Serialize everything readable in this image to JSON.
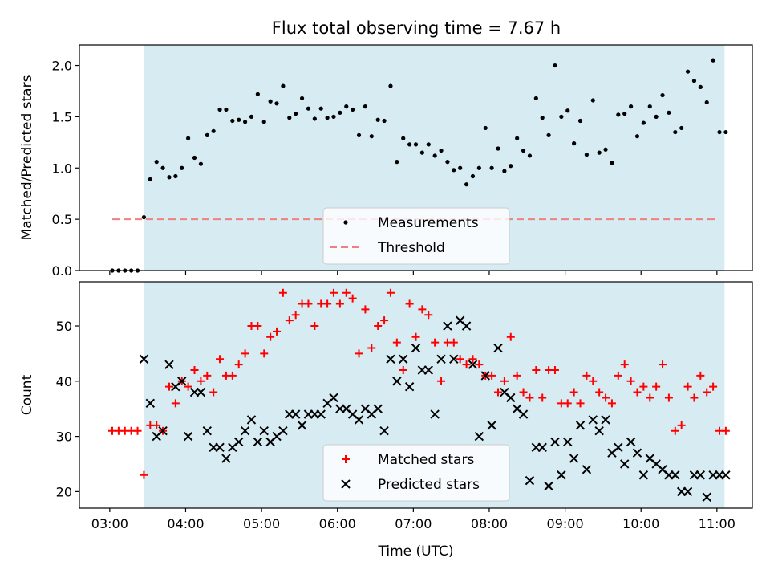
{
  "title": "Flux total observing time = 7.67 h",
  "chart_data": [
    {
      "type": "scatter",
      "ylabel": "Matched/Predicted stars",
      "x_range": [
        "02:36",
        "11:28"
      ],
      "ylim": [
        0,
        2.2
      ],
      "yticks": [
        "0.0",
        "0.5",
        "1.0",
        "1.5",
        "2.0"
      ],
      "shaded_span": {
        "x": [
          "03:27",
          "11:06"
        ],
        "color": "#add8e6"
      },
      "legend_position": "lower-center",
      "series": [
        {
          "name": "Measurements",
          "marker": "dot",
          "color": "#000000",
          "x": [
            "03:02",
            "03:07",
            "03:12",
            "03:17",
            "03:22",
            "03:27",
            "03:32",
            "03:37",
            "03:42",
            "03:47",
            "03:52",
            "03:57",
            "04:02",
            "04:07",
            "04:12",
            "04:17",
            "04:22",
            "04:27",
            "04:32",
            "04:37",
            "04:42",
            "04:47",
            "04:52",
            "04:57",
            "05:02",
            "05:07",
            "05:12",
            "05:17",
            "05:22",
            "05:27",
            "05:32",
            "05:37",
            "05:42",
            "05:47",
            "05:52",
            "05:57",
            "06:02",
            "06:07",
            "06:12",
            "06:17",
            "06:22",
            "06:27",
            "06:32",
            "06:37",
            "06:42",
            "06:47",
            "06:52",
            "06:57",
            "07:02",
            "07:07",
            "07:12",
            "07:17",
            "07:22",
            "07:27",
            "07:32",
            "07:37",
            "07:42",
            "07:47",
            "07:52",
            "07:57",
            "08:02",
            "08:07",
            "08:12",
            "08:17",
            "08:22",
            "08:27",
            "08:32",
            "08:37",
            "08:42",
            "08:47",
            "08:52",
            "08:57",
            "09:02",
            "09:07",
            "09:12",
            "09:17",
            "09:22",
            "09:27",
            "09:32",
            "09:37",
            "09:42",
            "09:47",
            "09:52",
            "09:57",
            "10:02",
            "10:07",
            "10:12",
            "10:17",
            "10:22",
            "10:27",
            "10:32",
            "10:37",
            "10:42",
            "10:47",
            "10:52",
            "10:57",
            "11:02",
            "11:07"
          ],
          "y": [
            0.0,
            0.0,
            0.0,
            0.0,
            0.0,
            0.52,
            0.89,
            1.06,
            1.0,
            0.91,
            0.92,
            1.0,
            1.29,
            1.1,
            1.04,
            1.32,
            1.36,
            1.57,
            1.57,
            1.46,
            1.47,
            1.45,
            1.5,
            1.72,
            1.45,
            1.65,
            1.63,
            1.8,
            1.49,
            1.53,
            1.68,
            1.58,
            1.48,
            1.58,
            1.49,
            1.5,
            1.54,
            1.6,
            1.57,
            1.32,
            1.6,
            1.31,
            1.47,
            1.46,
            1.8,
            1.06,
            1.29,
            1.23,
            1.23,
            1.15,
            1.23,
            1.12,
            1.17,
            1.06,
            0.98,
            1.0,
            0.84,
            0.92,
            1.0,
            1.39,
            1.0,
            1.19,
            0.97,
            1.02,
            1.29,
            1.17,
            1.12,
            1.68,
            1.49,
            1.32,
            2.0,
            1.5,
            1.56,
            1.24,
            1.46,
            1.13,
            1.66,
            1.15,
            1.18,
            1.05,
            1.52,
            1.53,
            1.6,
            1.31,
            1.44,
            1.6,
            1.5,
            1.71,
            1.54,
            1.35,
            1.39,
            1.94,
            1.85,
            1.79,
            1.64,
            2.05,
            1.35,
            1.35
          ]
        },
        {
          "name": "Threshold",
          "marker": "dashed-line",
          "color": "#f08080",
          "x": [
            "03:02",
            "11:02"
          ],
          "y": [
            0.5,
            0.5
          ]
        }
      ]
    },
    {
      "type": "scatter",
      "ylabel": "Count",
      "xlabel": "Time (UTC)",
      "x_range": [
        "02:36",
        "11:28"
      ],
      "ylim": [
        17,
        58
      ],
      "yticks": [
        "20",
        "30",
        "40",
        "50"
      ],
      "xticks": [
        "03:00",
        "04:00",
        "05:00",
        "06:00",
        "07:00",
        "08:00",
        "09:00",
        "10:00",
        "11:00"
      ],
      "shaded_span": {
        "x": [
          "03:27",
          "11:06"
        ],
        "color": "#add8e6"
      },
      "legend_position": "lower-center",
      "series": [
        {
          "name": "Matched stars",
          "marker": "plus",
          "color": "#ff0000",
          "x": [
            "03:02",
            "03:07",
            "03:12",
            "03:17",
            "03:22",
            "03:27",
            "03:32",
            "03:37",
            "03:42",
            "03:47",
            "03:52",
            "03:57",
            "04:02",
            "04:07",
            "04:12",
            "04:17",
            "04:22",
            "04:27",
            "04:32",
            "04:37",
            "04:42",
            "04:47",
            "04:52",
            "04:57",
            "05:02",
            "05:07",
            "05:12",
            "05:17",
            "05:22",
            "05:27",
            "05:32",
            "05:37",
            "05:42",
            "05:47",
            "05:52",
            "05:57",
            "06:02",
            "06:07",
            "06:12",
            "06:17",
            "06:22",
            "06:27",
            "06:32",
            "06:37",
            "06:42",
            "06:47",
            "06:52",
            "06:57",
            "07:02",
            "07:07",
            "07:12",
            "07:17",
            "07:22",
            "07:27",
            "07:32",
            "07:37",
            "07:42",
            "07:47",
            "07:52",
            "07:57",
            "08:02",
            "08:07",
            "08:12",
            "08:17",
            "08:22",
            "08:27",
            "08:32",
            "08:37",
            "08:42",
            "08:47",
            "08:52",
            "08:57",
            "09:02",
            "09:07",
            "09:12",
            "09:17",
            "09:22",
            "09:27",
            "09:32",
            "09:37",
            "09:42",
            "09:47",
            "09:52",
            "09:57",
            "10:02",
            "10:07",
            "10:12",
            "10:17",
            "10:22",
            "10:27",
            "10:32",
            "10:37",
            "10:42",
            "10:47",
            "10:52",
            "10:57",
            "11:02",
            "11:07"
          ],
          "y": [
            31,
            31,
            31,
            31,
            31,
            23,
            32,
            32,
            31,
            39,
            36,
            40,
            39,
            42,
            40,
            41,
            38,
            44,
            41,
            41,
            43,
            45,
            50,
            50,
            45,
            48,
            49,
            56,
            51,
            52,
            54,
            54,
            50,
            54,
            54,
            56,
            54,
            56,
            55,
            45,
            53,
            46,
            50,
            51,
            56,
            47,
            42,
            54,
            48,
            53,
            52,
            47,
            40,
            47,
            47,
            44,
            43,
            44,
            43,
            41,
            41,
            38,
            40,
            48,
            41,
            38,
            37,
            42,
            37,
            42,
            42,
            36,
            36,
            38,
            36,
            41,
            40,
            38,
            37,
            36,
            41,
            43,
            40,
            38,
            39,
            37,
            39,
            43,
            37,
            31,
            32,
            39,
            37,
            41,
            38,
            39,
            31,
            31
          ]
        },
        {
          "name": "Predicted stars",
          "marker": "x",
          "color": "#000000",
          "x": [
            "03:27",
            "03:32",
            "03:37",
            "03:42",
            "03:47",
            "03:52",
            "03:57",
            "04:02",
            "04:07",
            "04:12",
            "04:17",
            "04:22",
            "04:27",
            "04:32",
            "04:37",
            "04:42",
            "04:47",
            "04:52",
            "04:57",
            "05:02",
            "05:07",
            "05:12",
            "05:17",
            "05:22",
            "05:27",
            "05:32",
            "05:37",
            "05:42",
            "05:47",
            "05:52",
            "05:57",
            "06:02",
            "06:07",
            "06:12",
            "06:17",
            "06:22",
            "06:27",
            "06:32",
            "06:37",
            "06:42",
            "06:47",
            "06:52",
            "06:57",
            "07:02",
            "07:07",
            "07:12",
            "07:17",
            "07:22",
            "07:27",
            "07:32",
            "07:37",
            "07:42",
            "07:47",
            "07:52",
            "07:57",
            "08:02",
            "08:07",
            "08:12",
            "08:17",
            "08:22",
            "08:27",
            "08:32",
            "08:37",
            "08:42",
            "08:47",
            "08:52",
            "08:57",
            "09:02",
            "09:07",
            "09:12",
            "09:17",
            "09:22",
            "09:27",
            "09:32",
            "09:37",
            "09:42",
            "09:47",
            "09:52",
            "09:57",
            "10:02",
            "10:07",
            "10:12",
            "10:17",
            "10:22",
            "10:27",
            "10:32",
            "10:37",
            "10:42",
            "10:47",
            "10:52",
            "10:57",
            "11:02",
            "11:07"
          ],
          "y": [
            44,
            36,
            30,
            31,
            43,
            39,
            40,
            30,
            38,
            38,
            31,
            28,
            28,
            26,
            28,
            29,
            31,
            33,
            29,
            31,
            29,
            30,
            31,
            34,
            34,
            32,
            34,
            34,
            34,
            36,
            37,
            35,
            35,
            34,
            33,
            35,
            34,
            35,
            31,
            44,
            40,
            44,
            39,
            46,
            42,
            42,
            34,
            44,
            50,
            44,
            51,
            50,
            43,
            30,
            41,
            32,
            46,
            38,
            37,
            35,
            34,
            22,
            28,
            28,
            21,
            29,
            23,
            29,
            26,
            32,
            24,
            33,
            31,
            33,
            27,
            28,
            25,
            29,
            27,
            23,
            26,
            25,
            24,
            23,
            23,
            20,
            20,
            23,
            23,
            19,
            23,
            23,
            23
          ]
        }
      ]
    }
  ]
}
